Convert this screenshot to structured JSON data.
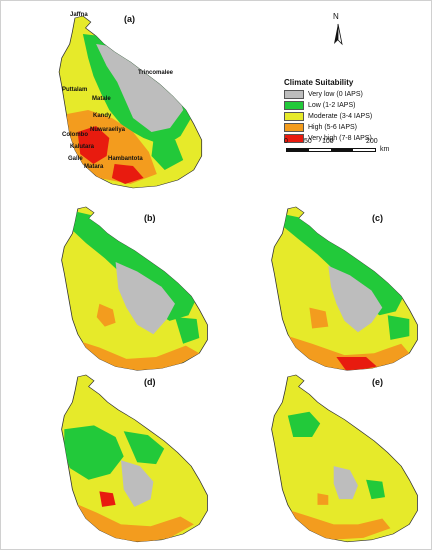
{
  "panels": [
    "(a)",
    "(b)",
    "(c)",
    "(d)",
    "(e)"
  ],
  "cities": [
    "Jaffna",
    "Trincomalee",
    "Puttalam",
    "Matale",
    "Kandy",
    "Colombo",
    "Nuwaraeliya",
    "Kalutara",
    "Galle",
    "Hambantota",
    "Matara"
  ],
  "legend": {
    "title": "Climate Suitability",
    "items": [
      {
        "label": "Very low (0 IAPS)",
        "color": "#bdbdbd"
      },
      {
        "label": "Low (1-2 IAPS)",
        "color": "#22c93a"
      },
      {
        "label": "Moderate (3-4 IAPS)",
        "color": "#e6ea2a"
      },
      {
        "label": "High (5-6 IAPS)",
        "color": "#f39c1e"
      },
      {
        "label": "Very high (7-8 IAPS)",
        "color": "#e81b0f"
      }
    ]
  },
  "north_label": "N",
  "scale": {
    "ticks": [
      "0",
      "50",
      "100",
      "200"
    ],
    "unit": "km"
  }
}
